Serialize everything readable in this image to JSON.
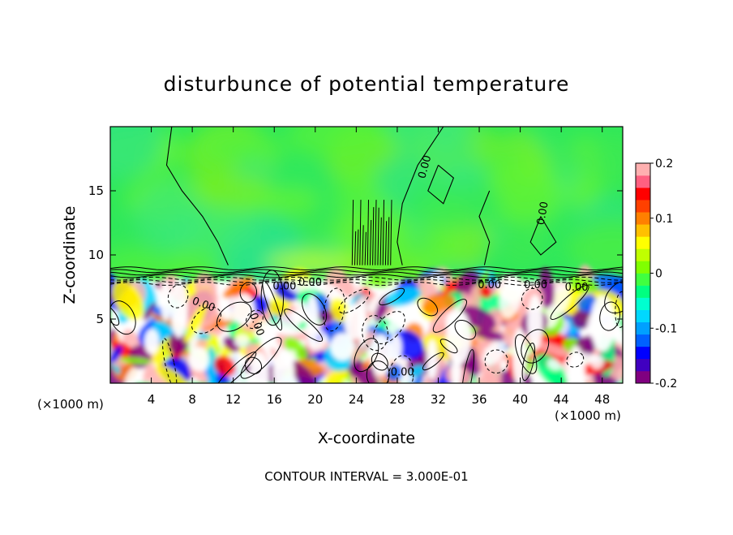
{
  "chart_data": {
    "type": "heatmap",
    "title": "disturbunce of potential temperature",
    "xlabel": "X-coordinate",
    "ylabel": "Z-coordinate",
    "x_unit": "(×1000 m)",
    "y_unit": "(×1000 m)",
    "xlim": [
      0,
      50
    ],
    "ylim": [
      0,
      20
    ],
    "x_ticks": [
      "4",
      "8",
      "12",
      "16",
      "20",
      "24",
      "28",
      "32",
      "36",
      "40",
      "44",
      "48"
    ],
    "x_tick_values": [
      4,
      8,
      12,
      16,
      20,
      24,
      28,
      32,
      36,
      40,
      44,
      48
    ],
    "y_ticks": [
      "5",
      "10",
      "15"
    ],
    "y_tick_values": [
      5,
      10,
      15
    ],
    "contour_labels": [
      "0.00",
      "0.00",
      "0.00",
      "0.00",
      "0.00",
      "0.00",
      "0.00",
      "0.00",
      "0.00",
      "0.00"
    ],
    "contour_interval_text": "CONTOUR INTERVAL = 3.000E-01",
    "colorbar": {
      "min": -0.2,
      "max": 0.2,
      "tick_labels": [
        "0.2",
        "0.1",
        "0",
        "-0.1",
        "-0.2"
      ],
      "tick_values": [
        0.2,
        0.1,
        0,
        -0.1,
        -0.2
      ],
      "colors": [
        "#800080",
        "#4000c0",
        "#0000ff",
        "#0060ff",
        "#00a0ff",
        "#00d8ff",
        "#00ffd0",
        "#00ff80",
        "#40ff40",
        "#80ff00",
        "#c0ff00",
        "#ffff00",
        "#ffc000",
        "#ff8000",
        "#ff4000",
        "#ff0000",
        "#ff6080",
        "#ffb0b0"
      ]
    },
    "regions": {
      "upper_layer": "weak positive disturbance (green, ~0 to 0.05) above about 8 km",
      "lower_layer": "strong mixed disturbance (-0.2 to 0.2) below about 8 km"
    }
  }
}
